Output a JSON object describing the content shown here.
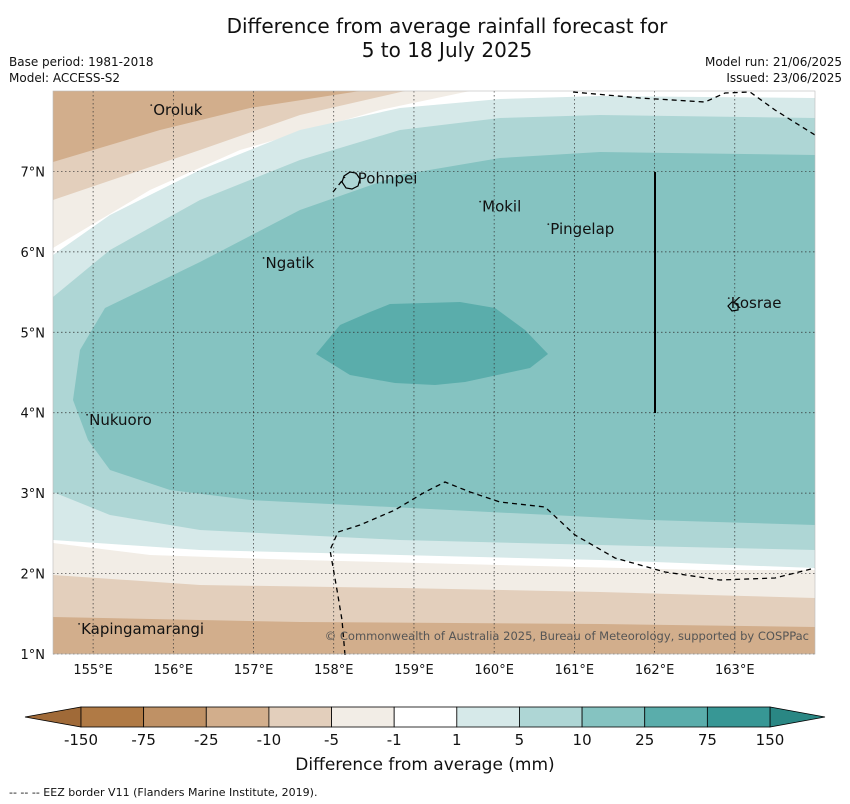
{
  "title_line1": "Difference from average rainfall forecast for",
  "title_line2": "5 to 18 July 2025",
  "base_period": "Base period: 1981-2018",
  "model": "Model: ACCESS-S2",
  "model_run": "Model run: 21/06/2025",
  "issued": "Issued: 23/06/2025",
  "copyright": "© Commonwealth of Australia 2025, Bureau of Meteorology, supported by COSPPac",
  "colorbar_label": "Difference from average (mm)",
  "footer": "--  --  -- EEZ border V11 (Flanders Marine Institute, 2019).",
  "map": {
    "lon_ticks": [
      {
        "lon": 155,
        "label": "155°E"
      },
      {
        "lon": 156,
        "label": "156°E"
      },
      {
        "lon": 157,
        "label": "157°E"
      },
      {
        "lon": 158,
        "label": "158°E"
      },
      {
        "lon": 159,
        "label": "159°E"
      },
      {
        "lon": 160,
        "label": "160°E"
      },
      {
        "lon": 161,
        "label": "161°E"
      },
      {
        "lon": 162,
        "label": "162°E"
      },
      {
        "lon": 163,
        "label": "163°E"
      }
    ],
    "lat_ticks": [
      {
        "lat": 1,
        "label": "1°N"
      },
      {
        "lat": 2,
        "label": "2°N"
      },
      {
        "lat": 3,
        "label": "3°N"
      },
      {
        "lat": 4,
        "label": "4°N"
      },
      {
        "lat": 5,
        "label": "5°N"
      },
      {
        "lat": 6,
        "label": "6°N"
      },
      {
        "lat": 7,
        "label": "7°N"
      }
    ],
    "lon_range": [
      154.5,
      164.0
    ],
    "lat_range": [
      1.0,
      8.0
    ],
    "places": [
      {
        "name": "Oroluk",
        "lon": 155.75,
        "lat": 7.7
      },
      {
        "name": "Pohnpei",
        "lon": 158.3,
        "lat": 6.85
      },
      {
        "name": "Mokil",
        "lon": 159.85,
        "lat": 6.5
      },
      {
        "name": "Pingelap",
        "lon": 160.7,
        "lat": 6.22
      },
      {
        "name": "Ngatik",
        "lon": 157.15,
        "lat": 5.8
      },
      {
        "name": "Kosrae",
        "lon": 162.95,
        "lat": 5.3
      },
      {
        "name": "Nukuoro",
        "lon": 154.95,
        "lat": 3.85
      },
      {
        "name": "Kapingamarangi",
        "lon": 154.85,
        "lat": 1.25
      }
    ]
  },
  "colorbar": {
    "ticks": [
      "-150",
      "-75",
      "-25",
      "-10",
      "-5",
      "-1",
      "1",
      "5",
      "10",
      "25",
      "75",
      "150"
    ],
    "colors": [
      "#b07a45",
      "#bf9165",
      "#d2ae8c",
      "#e3cfbc",
      "#f2ede6",
      "#ffffff",
      "#d6e9e9",
      "#aed6d5",
      "#85c3c1",
      "#5aadab",
      "#379795"
    ],
    "extend_low": "#a06a38",
    "extend_high": "#2a8784"
  }
}
